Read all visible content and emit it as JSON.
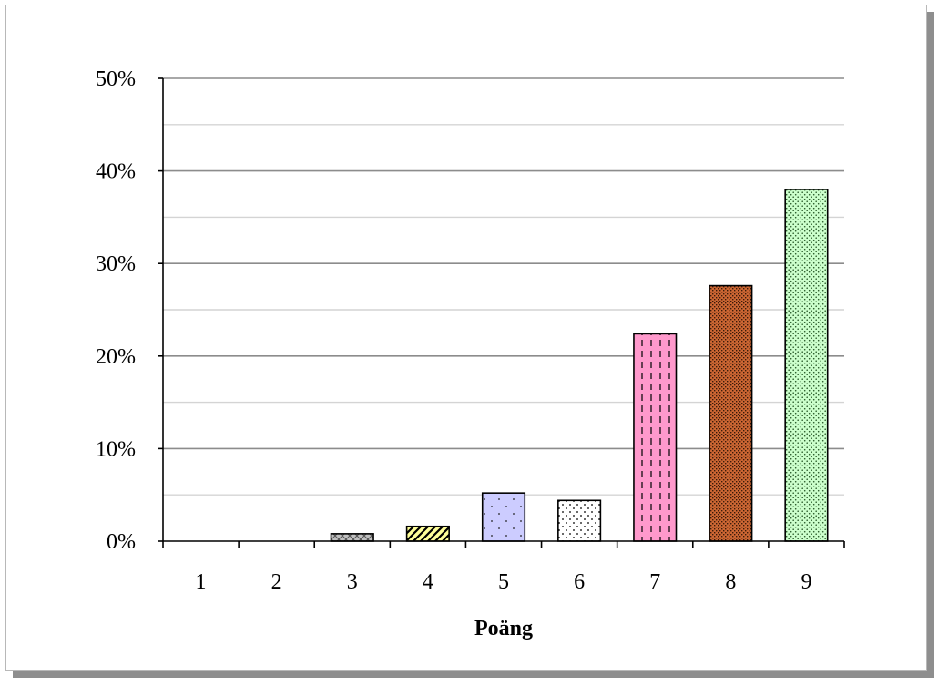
{
  "chart_data": {
    "type": "bar",
    "categories": [
      "1",
      "2",
      "3",
      "4",
      "5",
      "6",
      "7",
      "8",
      "9"
    ],
    "values": [
      0,
      0,
      0.8,
      1.6,
      5.2,
      4.4,
      22.4,
      27.6,
      38.0
    ],
    "xlabel": "Poäng",
    "ylabel": "",
    "ylim": [
      0,
      50
    ],
    "yticks": [
      "0%",
      "10%",
      "20%",
      "30%",
      "40%",
      "50%"
    ],
    "grid": "horizontal",
    "legend": "none",
    "bar_colors": [
      "#ffffff",
      "#ffffff",
      "#c0c0c0",
      "#ffff99",
      "#ccccff",
      "#ffffff",
      "#ff99cc",
      "#cc6633",
      "#ccffcc"
    ]
  }
}
